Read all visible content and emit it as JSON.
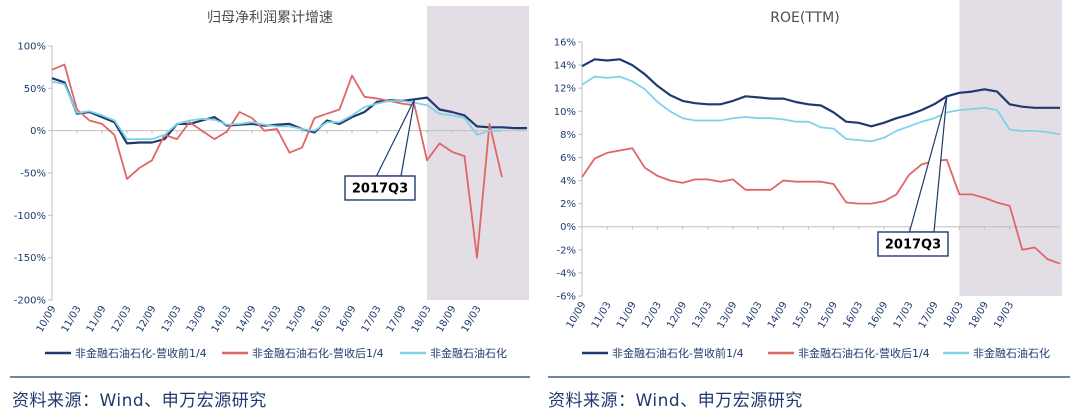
{
  "chart_data": [
    {
      "type": "line",
      "title": "归母净利润累计增速",
      "ylim": [
        -200,
        100
      ],
      "yticks": [
        100,
        50,
        0,
        -50,
        -100,
        -150,
        -200
      ],
      "ytick_labels": [
        "100%",
        "50%",
        "0%",
        "-50%",
        "-100%",
        "-150%",
        "-200%"
      ],
      "n_points": 39,
      "xtick_labels": [
        "10/09",
        "11/03",
        "11/09",
        "12/03",
        "12/09",
        "13/03",
        "13/09",
        "14/03",
        "14/09",
        "15/03",
        "15/09",
        "16/03",
        "16/09",
        "17/03",
        "17/09",
        "18/03",
        "18/09",
        "19/03"
      ],
      "shaded_from_index": 30,
      "annotation": {
        "text": "2017Q3",
        "index": 29
      },
      "series": [
        {
          "name": "非金融石油石化-营收前1/4",
          "color": "#1f3a6e",
          "values": [
            62,
            57,
            20,
            22,
            16,
            10,
            -15,
            -14,
            -14,
            -10,
            8,
            8,
            12,
            16,
            6,
            7,
            8,
            6,
            7,
            8,
            2,
            -2,
            12,
            8,
            16,
            22,
            34,
            36,
            35,
            37,
            39,
            25,
            22,
            18,
            5,
            4,
            4,
            3,
            3
          ]
        },
        {
          "name": "非金融石油石化-营收后1/4",
          "color": "#e06666",
          "values": [
            72,
            78,
            25,
            12,
            8,
            -5,
            -57,
            -44,
            -35,
            -5,
            -10,
            10,
            0,
            -10,
            -1,
            22,
            15,
            0,
            2,
            -26,
            -20,
            15,
            20,
            25,
            65,
            40,
            38,
            35,
            32,
            30,
            -35,
            -15,
            -25,
            -30,
            -150,
            8,
            -55,
            null,
            null
          ]
        },
        {
          "name": "非金融石油石化",
          "color": "#7fd3e8",
          "values": [
            58,
            55,
            21,
            23,
            18,
            12,
            -10,
            -10,
            -10,
            -5,
            8,
            12,
            14,
            13,
            7,
            8,
            10,
            7,
            5,
            5,
            2,
            0,
            10,
            10,
            18,
            28,
            32,
            35,
            35,
            33,
            30,
            20,
            18,
            15,
            -5,
            0,
            0,
            null,
            null
          ]
        }
      ]
    },
    {
      "type": "line",
      "title": "ROE(TTM)",
      "ylim": [
        -6,
        16
      ],
      "yticks": [
        16,
        14,
        12,
        10,
        8,
        6,
        4,
        2,
        0,
        -2,
        -4,
        -6
      ],
      "ytick_labels": [
        "16%",
        "14%",
        "12%",
        "10%",
        "8%",
        "6%",
        "4%",
        "2%",
        "0%",
        "-2%",
        "-4%",
        "-6%"
      ],
      "n_points": 39,
      "xtick_labels": [
        "10/09",
        "11/03",
        "11/09",
        "12/03",
        "12/09",
        "13/03",
        "13/09",
        "14/03",
        "14/09",
        "15/03",
        "15/09",
        "16/03",
        "16/09",
        "17/03",
        "17/09",
        "18/03",
        "18/09",
        "19/03"
      ],
      "shaded_from_index": 30,
      "annotation": {
        "text": "2017Q3",
        "index": 29
      },
      "series": [
        {
          "name": "非金融石油石化-营收前1/4",
          "color": "#1f3a6e",
          "values": [
            13.9,
            14.5,
            14.4,
            14.5,
            14.0,
            13.2,
            12.2,
            11.4,
            10.9,
            10.7,
            10.6,
            10.6,
            10.9,
            11.3,
            11.2,
            11.1,
            11.1,
            10.8,
            10.6,
            10.5,
            9.9,
            9.1,
            9.0,
            8.7,
            9.0,
            9.4,
            9.7,
            10.1,
            10.6,
            11.3,
            11.6,
            11.7,
            11.9,
            11.7,
            10.6,
            10.4,
            10.3,
            10.3,
            10.3
          ]
        },
        {
          "name": "非金融石油石化-营收后1/4",
          "color": "#e06666",
          "values": [
            4.3,
            5.9,
            6.4,
            6.6,
            6.8,
            5.1,
            4.4,
            4.0,
            3.8,
            4.1,
            4.1,
            3.9,
            4.1,
            3.2,
            3.2,
            3.2,
            4.0,
            3.9,
            3.9,
            3.9,
            3.7,
            2.1,
            2.0,
            2.0,
            2.2,
            2.8,
            4.5,
            5.4,
            5.7,
            5.8,
            2.8,
            2.8,
            2.5,
            2.1,
            1.8,
            -2.0,
            -1.8,
            -2.8,
            -3.2
          ]
        },
        {
          "name": "非金融石油石化",
          "color": "#7fd3e8",
          "values": [
            12.3,
            13.0,
            12.9,
            13.0,
            12.6,
            11.9,
            10.8,
            10.0,
            9.4,
            9.2,
            9.2,
            9.2,
            9.4,
            9.5,
            9.4,
            9.4,
            9.3,
            9.1,
            9.1,
            8.6,
            8.5,
            7.6,
            7.5,
            7.4,
            7.7,
            8.3,
            8.7,
            9.1,
            9.4,
            9.9,
            10.1,
            10.2,
            10.3,
            10.1,
            8.4,
            8.3,
            8.3,
            8.2,
            8.0
          ]
        }
      ]
    }
  ],
  "footer": {
    "left_source": "资料来源：Wind、申万宏源研究",
    "right_source": "资料来源：Wind、申万宏源研究"
  }
}
